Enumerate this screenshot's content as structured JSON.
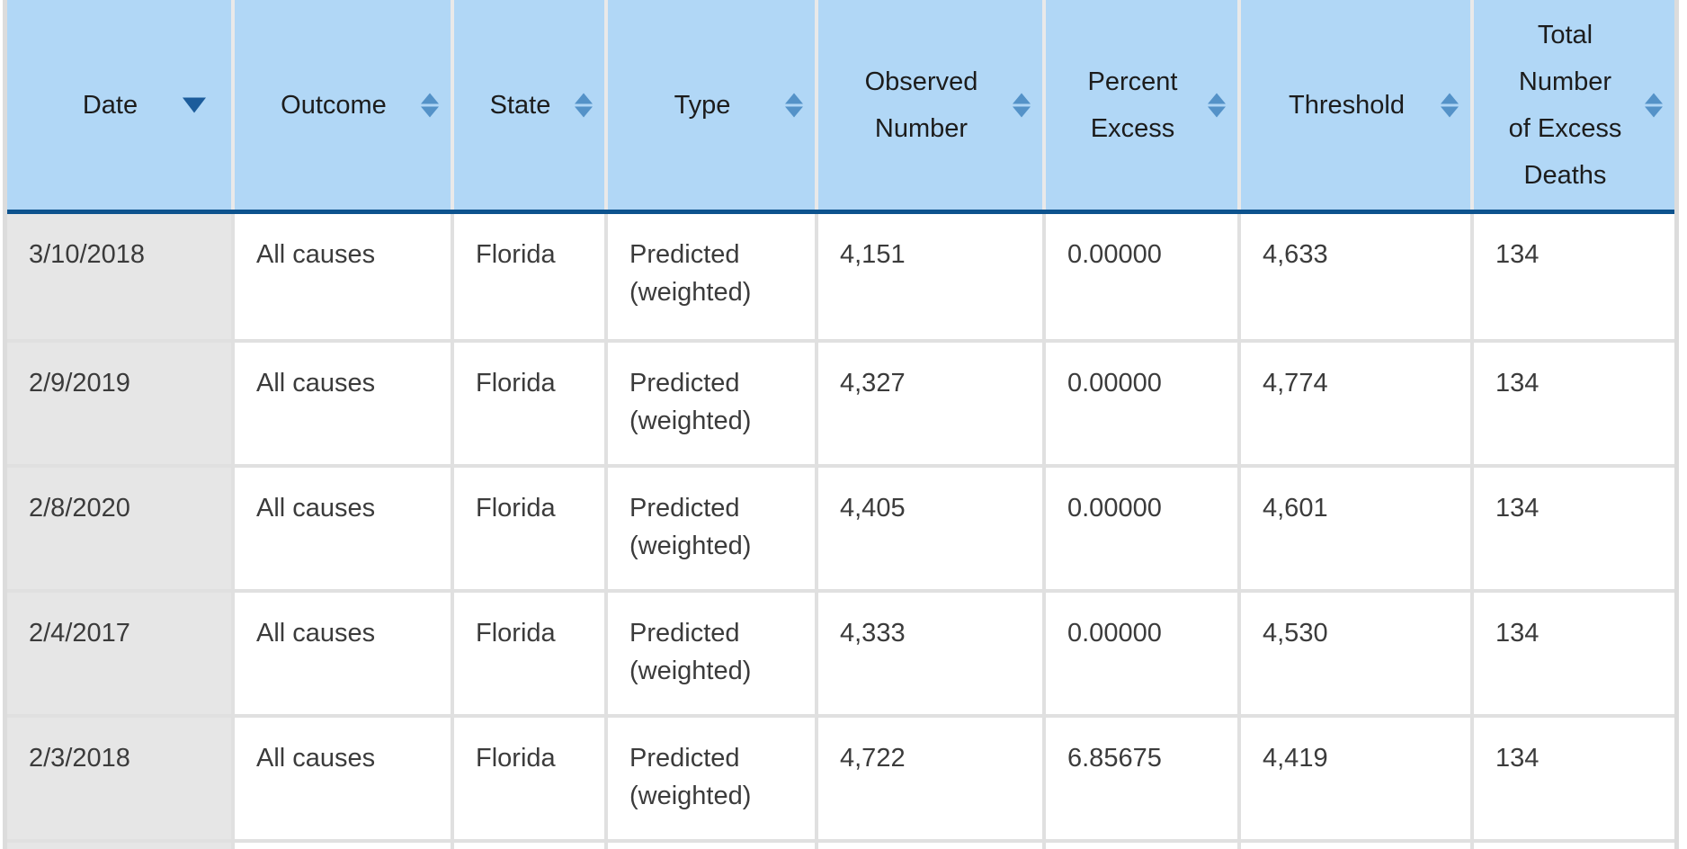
{
  "table": {
    "columns": [
      {
        "label": "Date",
        "sort_state": "sorted-desc",
        "icon": "sort-descending-icon"
      },
      {
        "label": "Outcome",
        "sort_state": "unsorted",
        "icon": "sort-both-icon"
      },
      {
        "label": "State",
        "sort_state": "unsorted",
        "icon": "sort-both-icon"
      },
      {
        "label": "Type",
        "sort_state": "unsorted",
        "icon": "sort-both-icon"
      },
      {
        "label": "Observed\nNumber",
        "sort_state": "unsorted",
        "icon": "sort-both-icon"
      },
      {
        "label": "Percent\nExcess",
        "sort_state": "unsorted",
        "icon": "sort-both-icon"
      },
      {
        "label": "Threshold",
        "sort_state": "unsorted",
        "icon": "sort-both-icon"
      },
      {
        "label": "Total\nNumber\nof Excess\nDeaths",
        "sort_state": "unsorted",
        "icon": "sort-both-icon"
      }
    ],
    "rows": [
      {
        "date": "3/10/2018",
        "outcome": "All causes",
        "state": "Florida",
        "type": "Predicted (weighted)",
        "observed_number": "4,151",
        "percent_excess": "0.00000",
        "threshold": "4,633",
        "total_excess_deaths": "134"
      },
      {
        "date": "2/9/2019",
        "outcome": "All causes",
        "state": "Florida",
        "type": "Predicted (weighted)",
        "observed_number": "4,327",
        "percent_excess": "0.00000",
        "threshold": "4,774",
        "total_excess_deaths": "134"
      },
      {
        "date": "2/8/2020",
        "outcome": "All causes",
        "state": "Florida",
        "type": "Predicted (weighted)",
        "observed_number": "4,405",
        "percent_excess": "0.00000",
        "threshold": "4,601",
        "total_excess_deaths": "134"
      },
      {
        "date": "2/4/2017",
        "outcome": "All causes",
        "state": "Florida",
        "type": "Predicted (weighted)",
        "observed_number": "4,333",
        "percent_excess": "0.00000",
        "threshold": "4,530",
        "total_excess_deaths": "134"
      },
      {
        "date": "2/3/2018",
        "outcome": "All causes",
        "state": "Florida",
        "type": "Predicted (weighted)",
        "observed_number": "4,722",
        "percent_excess": "6.85675",
        "threshold": "4,419",
        "total_excess_deaths": "134"
      }
    ],
    "partial_row_visible": true
  },
  "colors": {
    "header_background": "#b1d7f6",
    "header_bottom_border": "#0d538e",
    "sort_icon_unsorted": "#5492c8",
    "sort_icon_sorted": "#1c5c9b",
    "date_column_background": "#e6e6e6",
    "grid_line": "#e0e0e0",
    "body_text": "#3b3b3b"
  }
}
